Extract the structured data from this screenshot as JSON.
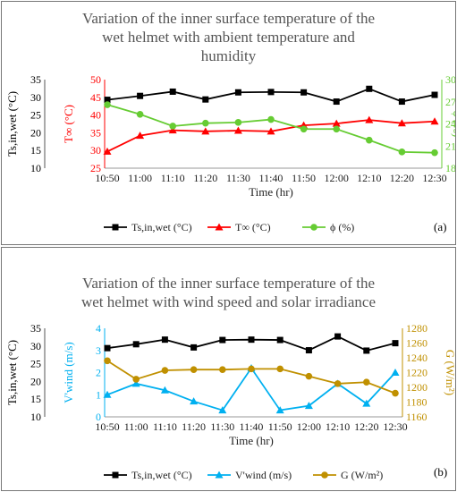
{
  "chart_data": [
    {
      "type": "line",
      "panel_label": "(a)",
      "title_lines": [
        "Variation of the inner surface temperature of the",
        "wet helmet with ambient temperature and",
        "humidity"
      ],
      "xlabel": "Time (hr)",
      "categories": [
        "10:50",
        "11:00",
        "11:10",
        "11:20",
        "11:30",
        "11:40",
        "11:50",
        "12:00",
        "12:10",
        "12:20",
        "12:30"
      ],
      "axes": [
        {
          "label": "Ts,in,wet (°C)",
          "ticks": [
            10,
            15,
            20,
            25,
            30,
            35
          ],
          "range": [
            10,
            35
          ],
          "color": "#000000"
        },
        {
          "label": "T∞ (°C)",
          "ticks": [
            25,
            30,
            35,
            40,
            45,
            50
          ],
          "range": [
            25,
            50
          ],
          "color": "#ff0000"
        },
        {
          "label": "ϕ (%)",
          "ticks": [
            18,
            21,
            24,
            27,
            30
          ],
          "range": [
            18,
            30
          ],
          "color": "#66cc33"
        }
      ],
      "series": [
        {
          "name": "Ts,in,wet (°C)",
          "axis": 0,
          "color": "#000000",
          "marker": "square",
          "values": [
            29.3,
            30.4,
            31.6,
            29.4,
            31.4,
            31.5,
            31.4,
            28.8,
            32.4,
            28.8,
            30.7
          ]
        },
        {
          "name": "T∞ (°C)",
          "axis": 1,
          "color": "#ff0000",
          "marker": "triangle",
          "values": [
            29.7,
            34.2,
            35.7,
            35.4,
            35.6,
            35.4,
            37.1,
            37.6,
            38.6,
            37.7,
            38.2
          ]
        },
        {
          "name": "ϕ (%)",
          "axis": 2,
          "color": "#66cc33",
          "marker": "circle",
          "values": [
            26.6,
            25.3,
            23.7,
            24.1,
            24.2,
            24.6,
            23.3,
            23.3,
            21.8,
            20.2,
            20.1
          ]
        }
      ],
      "legend_position": "bottom"
    },
    {
      "type": "line",
      "panel_label": "(b)",
      "title_lines": [
        "Variation of the inner surface temperature of the",
        "wet helmet with wind speed and solar irradiance"
      ],
      "xlabel": "Time (hr)",
      "categories": [
        "10:50",
        "11:00",
        "11:10",
        "11:20",
        "11:30",
        "11:40",
        "11:50",
        "12:00",
        "12:10",
        "12:20",
        "12:30"
      ],
      "axes": [
        {
          "label": "Ts,in,wet (°C)",
          "ticks": [
            10,
            15,
            20,
            25,
            30,
            35
          ],
          "range": [
            10,
            35
          ],
          "color": "#000000"
        },
        {
          "label": "V'wind (m/s)",
          "ticks": [
            0,
            1,
            2,
            3,
            4
          ],
          "range": [
            0,
            4
          ],
          "color": "#00b0f0"
        },
        {
          "label": "G (W/m²)",
          "ticks": [
            1160,
            1180,
            1200,
            1220,
            1240,
            1260,
            1280
          ],
          "range": [
            1160,
            1280
          ],
          "color": "#c09000"
        }
      ],
      "series": [
        {
          "name": "Ts,in,wet (°C)",
          "axis": 0,
          "color": "#000000",
          "marker": "square",
          "values": [
            29.4,
            30.5,
            31.8,
            29.6,
            31.7,
            31.8,
            31.7,
            28.8,
            32.7,
            28.7,
            30.8
          ]
        },
        {
          "name": "V'wind (m/s)",
          "axis": 1,
          "color": "#00b0f0",
          "marker": "triangle",
          "values": [
            1.0,
            1.5,
            1.2,
            0.7,
            0.3,
            2.2,
            0.3,
            0.5,
            1.5,
            0.6,
            2.0
          ]
        },
        {
          "name": "G (W/m²)",
          "axis": 2,
          "color": "#c09000",
          "marker": "circle",
          "values": [
            1236,
            1211,
            1223,
            1224,
            1224,
            1225,
            1225,
            1215,
            1205,
            1207,
            1192
          ]
        }
      ],
      "legend_position": "bottom"
    }
  ]
}
